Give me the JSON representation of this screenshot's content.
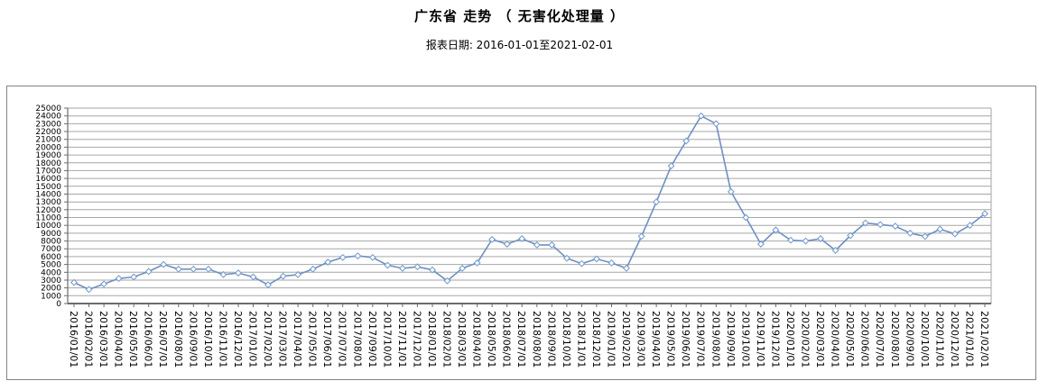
{
  "header": {
    "title": "广东省 走势 （ 无害化处理量 ）",
    "subtitle": "报表日期: 2016-01-01至2021-02-01"
  },
  "chart_data": {
    "type": "line",
    "title": "广东省 走势 （ 无害化处理量 ）",
    "subtitle": "报表日期: 2016-01-01至2021-02-01",
    "xlabel": "",
    "ylabel": "",
    "ylim": [
      0,
      25000
    ],
    "ytick_step": 1000,
    "grid": true,
    "legend": "none",
    "x_label_rotation": 90,
    "x": [
      "2016/01/01",
      "2016/02/01",
      "2016/03/01",
      "2016/04/01",
      "2016/05/01",
      "2016/06/01",
      "2016/07/01",
      "2016/08/01",
      "2016/09/01",
      "2016/10/01",
      "2016/11/01",
      "2016/12/01",
      "2017/01/01",
      "2017/02/01",
      "2017/03/01",
      "2017/04/01",
      "2017/05/01",
      "2017/06/01",
      "2017/07/01",
      "2017/08/01",
      "2017/09/01",
      "2017/10/01",
      "2017/11/01",
      "2017/12/01",
      "2018/01/01",
      "2018/02/01",
      "2018/03/01",
      "2018/04/01",
      "2018/05/01",
      "2018/06/01",
      "2018/07/01",
      "2018/08/01",
      "2018/09/01",
      "2018/10/01",
      "2018/11/01",
      "2018/12/01",
      "2019/01/01",
      "2019/02/01",
      "2019/03/01",
      "2019/04/01",
      "2019/05/01",
      "2019/06/01",
      "2019/07/01",
      "2019/08/01",
      "2019/09/01",
      "2019/10/01",
      "2019/11/01",
      "2019/12/01",
      "2020/01/01",
      "2020/02/01",
      "2020/03/01",
      "2020/04/01",
      "2020/05/01",
      "2020/06/01",
      "2020/07/01",
      "2020/08/01",
      "2020/09/01",
      "2020/10/01",
      "2020/11/01",
      "2020/12/01",
      "2021/01/01",
      "2021/02/01"
    ],
    "series": [
      {
        "name": "无害化处理量",
        "values": [
          2700,
          1800,
          2500,
          3200,
          3400,
          4100,
          5000,
          4400,
          4400,
          4400,
          3700,
          3900,
          3400,
          2400,
          3500,
          3700,
          4400,
          5300,
          5900,
          6100,
          5900,
          4900,
          4500,
          4700,
          4300,
          2900,
          4500,
          5200,
          8200,
          7600,
          8300,
          7500,
          7500,
          5800,
          5100,
          5700,
          5200,
          4500,
          8600,
          13000,
          17600,
          20800,
          24000,
          23000,
          14300,
          11000,
          7600,
          9400,
          8100,
          8000,
          8300,
          6800,
          8700,
          10300,
          10100,
          9900,
          9000,
          8600,
          9500,
          8900,
          10000,
          11500
        ]
      }
    ],
    "line_color": "#6e90c3",
    "marker": "diamond",
    "marker_fill": "#ffffff",
    "marker_stroke": "#7ba0ce",
    "grid_color": "#a6a6a6",
    "axis_color": "#6b6b6b",
    "frame_color": "#848484",
    "label_color": "#000000"
  }
}
